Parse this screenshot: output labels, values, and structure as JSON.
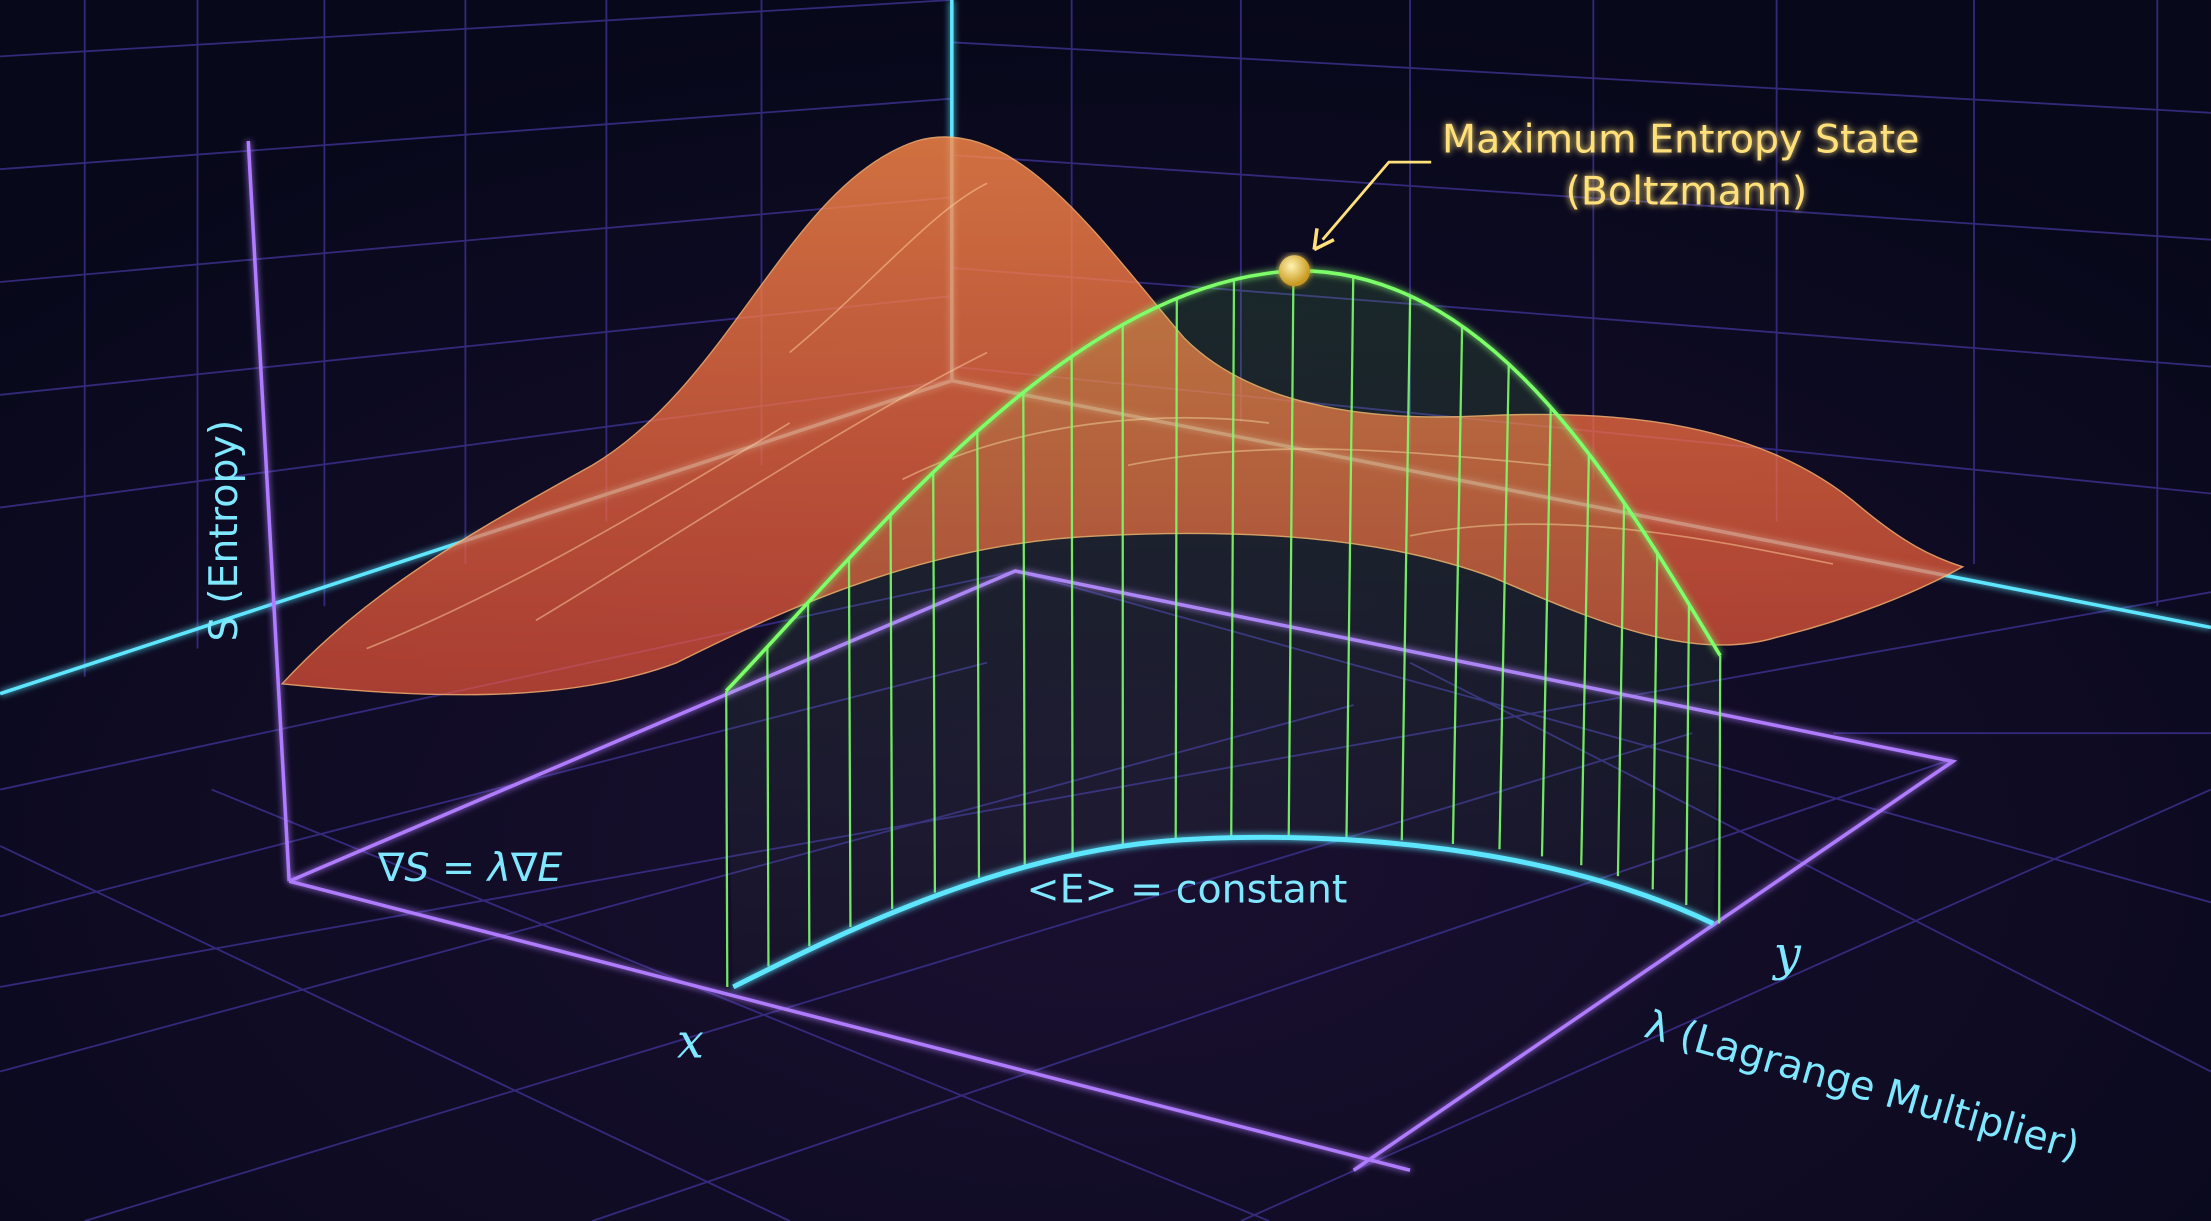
{
  "annotation": {
    "line1": "Maximum Entropy State",
    "line2": "(Boltzmann)"
  },
  "axes": {
    "vertical_label": "S (Entropy)",
    "x_label": "x",
    "y_label": "y",
    "lambda_label": "λ (Lagrange Multiplier)"
  },
  "equations": {
    "gradient": "∇S = λ∇E",
    "constraint": "<E> = constant"
  },
  "colors": {
    "background": "#0a0a1c",
    "grid": "#3a2f8a",
    "axis_purple": "#b07bff",
    "axis_cyan": "#5fe6ff",
    "surface": "#ff7a3c",
    "constraint_curtain": "#7dff6a",
    "annotation": "#ffe07a"
  }
}
